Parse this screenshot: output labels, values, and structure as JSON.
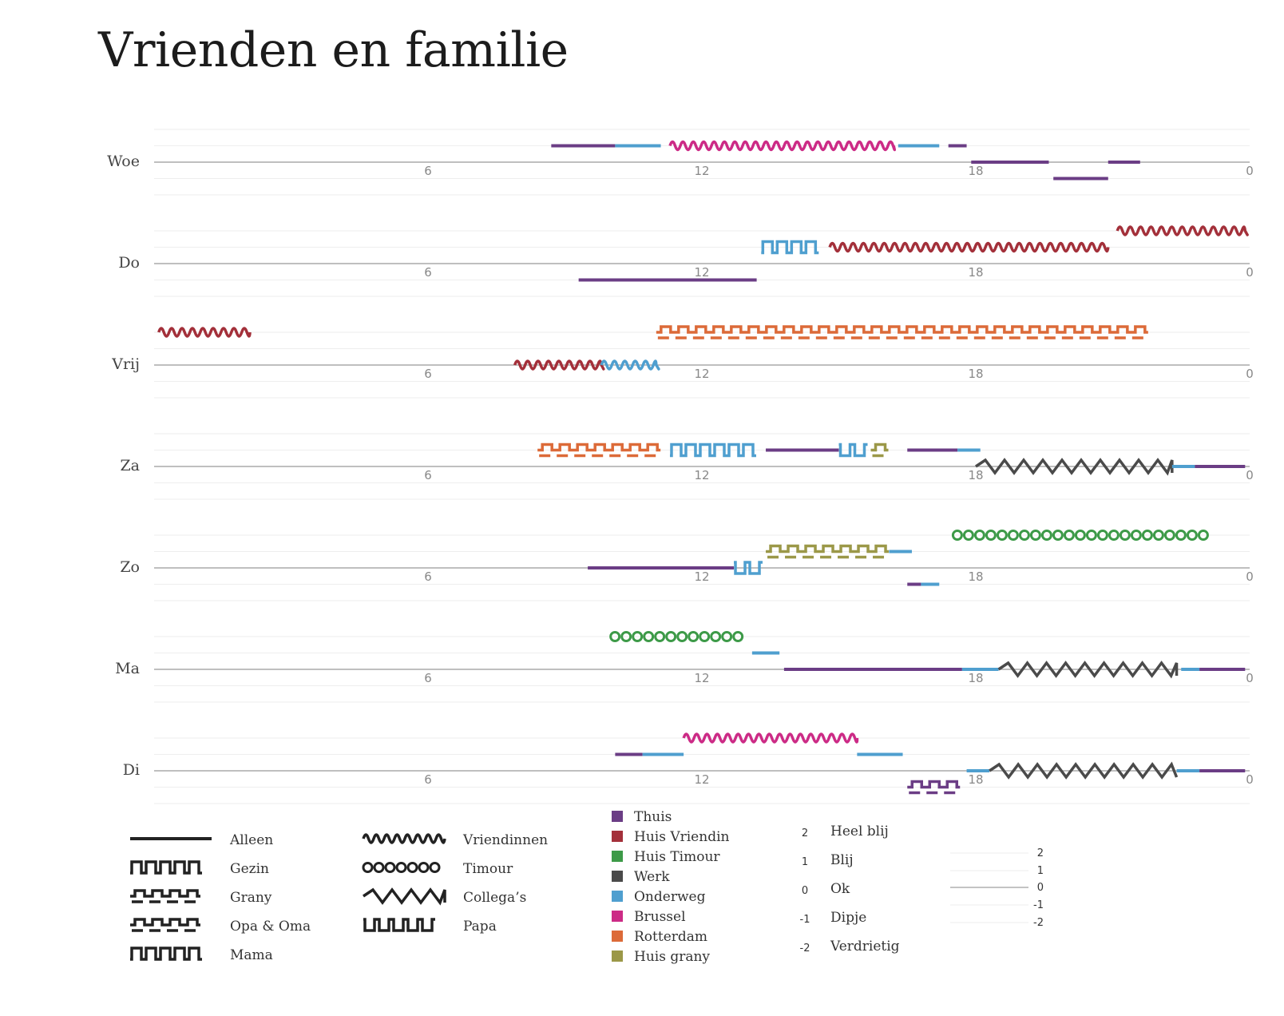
{
  "title": "Vrienden en familie",
  "chart_data": {
    "type": "timeline",
    "x_ticks": [
      "6",
      "12",
      "18",
      "0"
    ],
    "xlim": [
      0,
      24
    ],
    "mood_levels": [
      2,
      1,
      0,
      -1,
      -2
    ],
    "days": [
      {
        "label": "Woe",
        "segments": [
          {
            "start": 8.7,
            "end": 10.1,
            "mood": 1,
            "place": "Thuis",
            "company": "Alleen"
          },
          {
            "start": 10.1,
            "end": 11.1,
            "mood": 1,
            "place": "Onderweg",
            "company": "Alleen"
          },
          {
            "start": 11.3,
            "end": 16.2,
            "mood": 1,
            "place": "Brussel",
            "company": "Vriendinnen"
          },
          {
            "start": 16.3,
            "end": 17.2,
            "mood": 1,
            "place": "Onderweg",
            "company": "Alleen"
          },
          {
            "start": 17.4,
            "end": 17.8,
            "mood": 1,
            "place": "Thuis",
            "company": "Alleen"
          },
          {
            "start": 17.9,
            "end": 19.6,
            "mood": 0,
            "place": "Thuis",
            "company": "Alleen"
          },
          {
            "start": 19.7,
            "end": 20.9,
            "mood": -1,
            "place": "Thuis",
            "company": "Alleen"
          },
          {
            "start": 20.9,
            "end": 21.6,
            "mood": 0,
            "place": "Thuis",
            "company": "Alleen"
          }
        ]
      },
      {
        "label": "Do",
        "segments": [
          {
            "start": 9.3,
            "end": 13.2,
            "mood": -1,
            "place": "Thuis",
            "company": "Alleen"
          },
          {
            "start": 13.3,
            "end": 14.8,
            "mood": 1,
            "place": "Onderweg",
            "company": "Mama"
          },
          {
            "start": 14.8,
            "end": 20.9,
            "mood": 1,
            "place": "Huis Vriendin",
            "company": "Vriendinnen"
          },
          {
            "start": 21.1,
            "end": 23.9,
            "mood": 2,
            "place": "Huis Vriendin",
            "company": "Vriendinnen"
          }
        ]
      },
      {
        "label": "Vrij",
        "segments": [
          {
            "start": 0.1,
            "end": 2.1,
            "mood": 2,
            "place": "Huis Vriendin",
            "company": "Vriendinnen"
          },
          {
            "start": 7.9,
            "end": 9.8,
            "mood": 0,
            "place": "Huis Vriendin",
            "company": "Vriendinnen"
          },
          {
            "start": 9.8,
            "end": 11.0,
            "mood": 0,
            "place": "Onderweg",
            "company": "Vriendinnen"
          },
          {
            "start": 11.0,
            "end": 22.1,
            "mood": 2,
            "place": "Rotterdam",
            "company": "Grany"
          }
        ]
      },
      {
        "label": "Za",
        "segments": [
          {
            "start": 8.4,
            "end": 11.3,
            "mood": 1,
            "place": "Rotterdam",
            "company": "Grany"
          },
          {
            "start": 11.3,
            "end": 13.3,
            "mood": 1,
            "place": "Onderweg",
            "company": "Gezin"
          },
          {
            "start": 13.4,
            "end": 15.0,
            "mood": 1,
            "place": "Thuis",
            "company": "Alleen"
          },
          {
            "start": 15.0,
            "end": 15.7,
            "mood": 1,
            "place": "Onderweg",
            "company": "Papa"
          },
          {
            "start": 15.7,
            "end": 16.1,
            "mood": 1,
            "place": "Huis grany",
            "company": "Opa & Oma"
          },
          {
            "start": 16.1,
            "end": 16.4,
            "mood": 1,
            "place": "Onderweg",
            "company": "Papa"
          },
          {
            "start": 16.5,
            "end": 17.6,
            "mood": 1,
            "place": "Thuis",
            "company": "Alleen"
          },
          {
            "start": 17.6,
            "end": 18.1,
            "mood": 1,
            "place": "Onderweg",
            "company": "Alleen"
          },
          {
            "start": 18.0,
            "end": 22.3,
            "mood": 0,
            "place": "Werk",
            "company": "Collega's"
          },
          {
            "start": 22.3,
            "end": 22.8,
            "mood": 0,
            "place": "Onderweg",
            "company": "Alleen"
          },
          {
            "start": 22.8,
            "end": 23.9,
            "mood": 0,
            "place": "Thuis",
            "company": "Alleen"
          }
        ]
      },
      {
        "label": "Zo",
        "segments": [
          {
            "start": 9.5,
            "end": 12.7,
            "mood": 0,
            "place": "Thuis",
            "company": "Alleen"
          },
          {
            "start": 12.7,
            "end": 13.4,
            "mood": 0,
            "place": "Onderweg",
            "company": "Papa"
          },
          {
            "start": 13.4,
            "end": 16.1,
            "mood": 1,
            "place": "Huis grany",
            "company": "Opa & Oma"
          },
          {
            "start": 16.1,
            "end": 16.6,
            "mood": 1,
            "place": "Onderweg",
            "company": "Alleen"
          },
          {
            "start": 16.5,
            "end": 16.8,
            "mood": -1,
            "place": "Thuis",
            "company": "Alleen"
          },
          {
            "start": 16.8,
            "end": 17.2,
            "mood": -1,
            "place": "Onderweg",
            "company": "Alleen"
          },
          {
            "start": 17.5,
            "end": 23.2,
            "mood": 2,
            "place": "Huis Timour",
            "company": "Timour"
          }
        ]
      },
      {
        "label": "Ma",
        "segments": [
          {
            "start": 10.0,
            "end": 13.1,
            "mood": 2,
            "place": "Huis Timour",
            "company": "Timour"
          },
          {
            "start": 13.1,
            "end": 13.7,
            "mood": 1,
            "place": "Onderweg",
            "company": "Alleen"
          },
          {
            "start": 13.8,
            "end": 17.7,
            "mood": 0,
            "place": "Thuis",
            "company": "Alleen"
          },
          {
            "start": 17.7,
            "end": 18.5,
            "mood": 0,
            "place": "Onderweg",
            "company": "Alleen"
          },
          {
            "start": 18.5,
            "end": 22.4,
            "mood": 0,
            "place": "Werk",
            "company": "Collega's"
          },
          {
            "start": 22.5,
            "end": 22.9,
            "mood": 0,
            "place": "Onderweg",
            "company": "Alleen"
          },
          {
            "start": 22.9,
            "end": 23.9,
            "mood": 0,
            "place": "Thuis",
            "company": "Alleen"
          }
        ]
      },
      {
        "label": "Di",
        "segments": [
          {
            "start": 10.1,
            "end": 10.7,
            "mood": 1,
            "place": "Thuis",
            "company": "Alleen"
          },
          {
            "start": 10.7,
            "end": 11.6,
            "mood": 1,
            "place": "Onderweg",
            "company": "Alleen"
          },
          {
            "start": 11.6,
            "end": 15.4,
            "mood": 2,
            "place": "Brussel",
            "company": "Vriendinnen"
          },
          {
            "start": 15.4,
            "end": 16.4,
            "mood": 1,
            "place": "Onderweg",
            "company": "Alleen"
          },
          {
            "start": 16.5,
            "end": 17.7,
            "mood": -1,
            "place": "Thuis",
            "company": "Opa & Oma"
          },
          {
            "start": 17.8,
            "end": 18.3,
            "mood": 0,
            "place": "Onderweg",
            "company": "Alleen"
          },
          {
            "start": 18.3,
            "end": 22.4,
            "mood": 0,
            "place": "Werk",
            "company": "Collega's"
          },
          {
            "start": 22.4,
            "end": 22.9,
            "mood": 0,
            "place": "Onderweg",
            "company": "Alleen"
          },
          {
            "start": 22.9,
            "end": 23.9,
            "mood": 0,
            "place": "Thuis",
            "company": "Alleen"
          }
        ]
      }
    ]
  },
  "legend": {
    "company": [
      {
        "label": "Alleen",
        "pattern": "line"
      },
      {
        "label": "Gezin",
        "pattern": "square-up"
      },
      {
        "label": "Grany",
        "pattern": "dashed-square"
      },
      {
        "label": "Opa & Oma",
        "pattern": "double-square"
      },
      {
        "label": "Mama",
        "pattern": "arch"
      },
      {
        "label": "Vriendinnen",
        "pattern": "wave"
      },
      {
        "label": "Timour",
        "pattern": "circles"
      },
      {
        "label": "Collega’s",
        "pattern": "zigzag"
      },
      {
        "label": "Papa",
        "pattern": "cup"
      }
    ],
    "places": [
      {
        "label": "Thuis",
        "color": "#6b3d85"
      },
      {
        "label": "Huis Vriendin",
        "color": "#a3303a"
      },
      {
        "label": "Huis Timour",
        "color": "#3d9a48"
      },
      {
        "label": "Werk",
        "color": "#4a4a4a"
      },
      {
        "label": "Onderweg",
        "color": "#4f9fcf"
      },
      {
        "label": "Brussel",
        "color": "#cc2b86"
      },
      {
        "label": "Rotterdam",
        "color": "#dc6a38"
      },
      {
        "label": "Huis grany",
        "color": "#9b9848"
      }
    ],
    "moods": [
      {
        "value": "2",
        "label": "Heel blij"
      },
      {
        "value": "1",
        "label": "Blij"
      },
      {
        "value": "0",
        "label": "Ok"
      },
      {
        "value": "-1",
        "label": "Dipje"
      },
      {
        "value": "-2",
        "label": "Verdrietig"
      }
    ],
    "mood_scale": [
      "2",
      "1",
      "0",
      "-1",
      "-2"
    ]
  }
}
